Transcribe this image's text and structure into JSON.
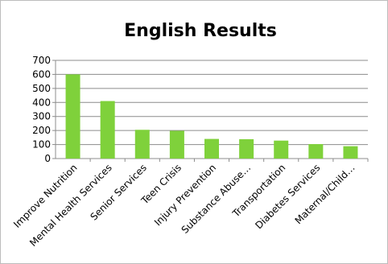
{
  "chart_data": {
    "type": "bar",
    "title": "English Results",
    "categories": [
      "Improve Nutrition",
      "Mental Health Services",
      "Senior Services",
      "Teen Crisis",
      "Injury Prevention",
      "Substance Abuse…",
      "Transportation",
      "Diabetes Services",
      "Maternal/Child…"
    ],
    "values": [
      600,
      410,
      205,
      198,
      140,
      138,
      128,
      103,
      88
    ],
    "ylim": [
      0,
      700
    ],
    "yticks": [
      0,
      100,
      200,
      300,
      400,
      500,
      600,
      700
    ],
    "grid": true,
    "legend": "none",
    "xlabel": "",
    "ylabel": ""
  },
  "colors": {
    "bar": "#7fd13b",
    "grid": "#8c8c8c",
    "axis": "#8c8c8c",
    "frame": "#bdbdbd"
  }
}
